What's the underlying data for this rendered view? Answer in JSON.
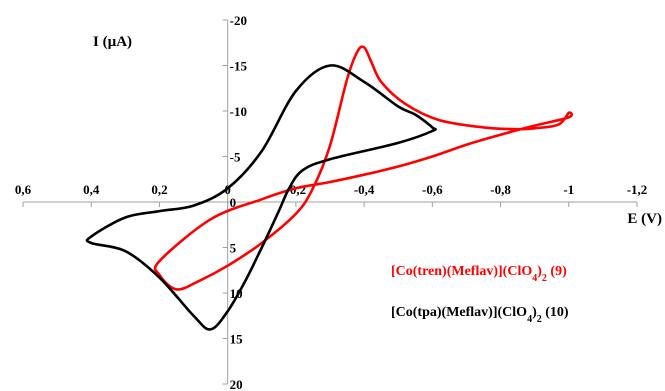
{
  "chart_data": {
    "type": "line",
    "title": "",
    "xlabel": "E (V)",
    "ylabel": "I (µA)",
    "xlim": [
      0.6,
      -1.2
    ],
    "ylim": [
      -20,
      20
    ],
    "x_inverted": true,
    "y_inverted": true,
    "x_ticks": [
      0.6,
      0.4,
      0.2,
      0,
      -0.2,
      -0.4,
      -0.6,
      -0.8,
      -1,
      -1.2
    ],
    "x_tick_labels": [
      "0,6",
      "0,4",
      "0,2",
      "0",
      "-0,2",
      "-0,4",
      "-0,6",
      "-0,8",
      "-1",
      "-1,2"
    ],
    "y_ticks": [
      -20,
      -15,
      -10,
      -5,
      0,
      5,
      10,
      15,
      20
    ],
    "y_tick_labels": [
      "-20",
      "-15",
      "-10",
      "-5",
      "0",
      "5",
      "10",
      "15",
      "20"
    ],
    "grid": false,
    "legend_position": "bottom-right",
    "series": [
      {
        "name": "[Co(tren)(Meflav)](ClO4)2  (9)",
        "color": "#ff0000",
        "x": [
          0.2,
          0.05,
          -0.1,
          -0.2,
          -0.3,
          -0.4,
          -0.5,
          -0.6,
          -0.7,
          -0.8,
          -0.9,
          -1.0,
          -1.0,
          -0.97,
          -0.9,
          -0.85,
          -0.75,
          -0.62,
          -0.52,
          -0.45,
          -0.42,
          -0.4,
          -0.38,
          -0.35,
          -0.3,
          -0.25,
          -0.2,
          -0.1,
          0.0,
          0.08,
          0.15,
          0.2
        ],
        "y": [
          6.5,
          1.9,
          -0.3,
          -1.5,
          -2.2,
          -3.0,
          -3.9,
          -5.0,
          -6.3,
          -7.4,
          -8.4,
          -9.3,
          -9.8,
          -8.5,
          -8.1,
          -8.0,
          -8.2,
          -9.0,
          -10.8,
          -13.2,
          -15.5,
          -17.0,
          -16.5,
          -13.5,
          -6.2,
          -1.5,
          1.3,
          4.5,
          7.0,
          8.6,
          9.6,
          8.0
        ]
      },
      {
        "name": "[Co(tpa)(Meflav)](ClO4)2  (10)",
        "color": "#000000",
        "x": [
          0.4,
          0.3,
          0.2,
          0.1,
          0.0,
          -0.1,
          -0.2,
          -0.3,
          -0.4,
          -0.5,
          -0.55,
          -0.6,
          -0.6,
          -0.5,
          -0.3,
          -0.22,
          -0.18,
          -0.15,
          -0.1,
          -0.05,
          0.0,
          0.05,
          0.1,
          0.2,
          0.3,
          0.4
        ],
        "y": [
          3.8,
          1.7,
          1.0,
          0.4,
          -1.5,
          -5.6,
          -12.2,
          -15.0,
          -13.2,
          -10.5,
          -9.6,
          -8.2,
          -7.8,
          -6.5,
          -4.7,
          -3.5,
          -1.5,
          1.0,
          5.0,
          8.8,
          12.0,
          14.0,
          12.5,
          8.3,
          5.4,
          4.5
        ]
      }
    ]
  },
  "legend": [
    {
      "parts": [
        "[Co(tren)(Meflav)](ClO",
        "4",
        ")",
        "2",
        "  (9)"
      ],
      "color": "#ff0000"
    },
    {
      "parts": [
        "[Co(tpa)(Meflav)](ClO",
        "4",
        ")",
        "2",
        "  (10)"
      ],
      "color": "#000000"
    }
  ]
}
